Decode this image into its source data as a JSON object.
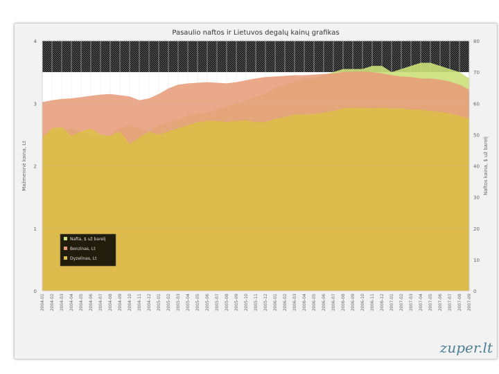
{
  "watermark": "zuper.lt",
  "chart_data": {
    "type": "area",
    "title": "Pasaulio naftos ir Lietuvos degalų kainų grafikas",
    "ylabel_left": "Mažmeninė kaina, Lt",
    "ylabel_right": "Naftos kaina, $ už barelį",
    "ylim_left": [
      0,
      4
    ],
    "ylim_right": [
      0,
      80
    ],
    "yticks_left": [
      0,
      1,
      2,
      3,
      4
    ],
    "yticks_right": [
      0,
      10,
      20,
      30,
      40,
      50,
      60,
      70,
      80
    ],
    "grid": true,
    "legend_position": "bottom-left",
    "x": [
      "2004-01",
      "2004-02",
      "2004-03",
      "2004-04",
      "2004-05",
      "2004-06",
      "2004-07",
      "2004-08",
      "2004-09",
      "2004-10",
      "2004-11",
      "2004-12",
      "2005-01",
      "2005-02",
      "2005-03",
      "2005-04",
      "2005-05",
      "2005-06",
      "2005-07",
      "2005-08",
      "2005-09",
      "2005-10",
      "2005-11",
      "2005-12",
      "2006-01",
      "2006-02",
      "2006-03",
      "2006-04",
      "2006-05",
      "2006-06",
      "2006-07",
      "2006-08",
      "2006-09",
      "2006-10",
      "2006-11",
      "2006-12",
      "2007-01",
      "2007-02",
      "2007-03",
      "2007-04",
      "2007-05",
      "2007-06",
      "2007-07",
      "2007-08",
      "2007-09"
    ],
    "series": [
      {
        "name": "Nafta, $ už barelį",
        "axis": "right",
        "color": "#cde07a",
        "values": [
          50,
          51,
          52,
          52,
          51,
          50,
          49,
          50,
          52,
          53,
          52,
          51,
          53,
          54,
          55,
          56,
          57,
          57,
          58,
          59,
          60,
          61,
          62,
          63,
          65,
          66,
          67,
          68,
          68,
          69,
          70,
          71,
          71,
          71,
          72,
          72,
          70,
          71,
          72,
          73,
          73,
          72,
          71,
          70,
          68
        ]
      },
      {
        "name": "Benzinas, Lt",
        "axis": "left",
        "color": "#e89a78",
        "values": [
          3.02,
          3.05,
          3.07,
          3.08,
          3.1,
          3.12,
          3.14,
          3.15,
          3.13,
          3.11,
          3.05,
          3.08,
          3.15,
          3.24,
          3.3,
          3.32,
          3.33,
          3.34,
          3.33,
          3.32,
          3.34,
          3.37,
          3.4,
          3.42,
          3.43,
          3.44,
          3.45,
          3.45,
          3.46,
          3.47,
          3.48,
          3.5,
          3.51,
          3.51,
          3.5,
          3.48,
          3.45,
          3.43,
          3.42,
          3.4,
          3.4,
          3.38,
          3.35,
          3.3,
          3.22
        ]
      },
      {
        "name": "Dyzelinas, Lt",
        "axis": "left",
        "color": "#dcbf45",
        "values": [
          2.45,
          2.6,
          2.62,
          2.48,
          2.55,
          2.6,
          2.5,
          2.48,
          2.55,
          2.35,
          2.45,
          2.55,
          2.5,
          2.55,
          2.6,
          2.65,
          2.7,
          2.72,
          2.72,
          2.7,
          2.72,
          2.73,
          2.7,
          2.7,
          2.75,
          2.78,
          2.82,
          2.82,
          2.83,
          2.85,
          2.88,
          2.92,
          2.93,
          2.93,
          2.92,
          2.93,
          2.92,
          2.92,
          2.9,
          2.9,
          2.88,
          2.86,
          2.84,
          2.8,
          2.75
        ]
      }
    ]
  }
}
